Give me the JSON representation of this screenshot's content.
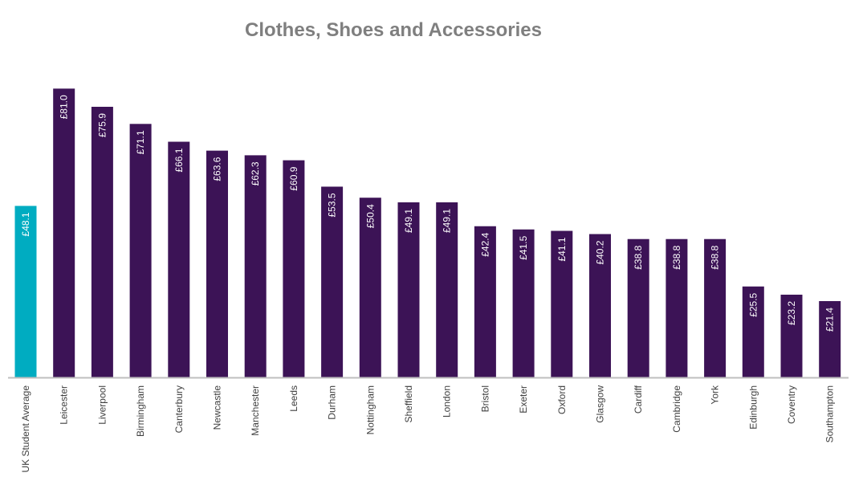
{
  "chart_data": {
    "type": "bar",
    "title": "Clothes, Shoes and Accessories",
    "xlabel": "",
    "ylabel": "",
    "ylim": [
      0,
      85
    ],
    "grid": false,
    "legend": "none",
    "colors": {
      "highlight": "#00acc1",
      "bar": "#3c1356",
      "axis": "#bfbfbf"
    },
    "categories": [
      "UK Student Average",
      "Leicester",
      "Liverpool",
      "Birmingham",
      "Canterbury",
      "Newcastle",
      "Manchester",
      "Leeds",
      "Durham",
      "Nottingham",
      "Sheffield",
      "London",
      "Bristol",
      "Exeter",
      "Oxford",
      "Glasgow",
      "Cardiff",
      "Cambridge",
      "York",
      "Edinburgh",
      "Coventry",
      "Southampton"
    ],
    "values": [
      48.1,
      81.0,
      75.9,
      71.1,
      66.1,
      63.6,
      62.3,
      60.9,
      53.5,
      50.4,
      49.1,
      49.1,
      42.4,
      41.5,
      41.1,
      40.2,
      38.8,
      38.8,
      38.8,
      25.5,
      23.2,
      21.4
    ],
    "value_labels": [
      "£48.1",
      "£81.0",
      "£75.9",
      "£71.1",
      "£66.1",
      "£63.6",
      "£62.3",
      "£60.9",
      "£53.5",
      "£50.4",
      "£49.1",
      "£49.1",
      "£42.4",
      "£41.5",
      "£41.1",
      "£40.2",
      "£38.8",
      "£38.8",
      "£38.8",
      "£25.5",
      "£23.2",
      "£21.4"
    ],
    "highlight_index": 0
  }
}
